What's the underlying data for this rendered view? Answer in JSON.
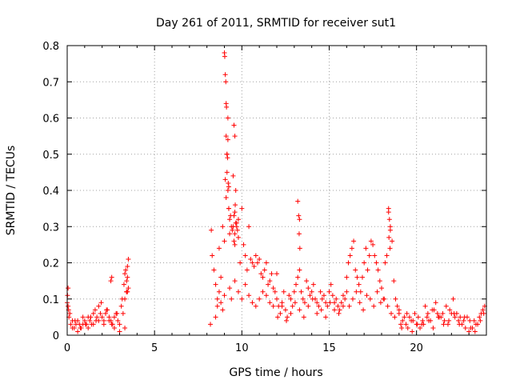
{
  "chart_data": {
    "type": "scatter",
    "title": "Day 261 of 2011, SRMTID for receiver sut1",
    "xlabel": "GPS time / hours",
    "ylabel": "SRMTID / TECUs",
    "xlim": [
      0,
      24
    ],
    "ylim": [
      0,
      0.8
    ],
    "xticks": [
      0,
      5,
      10,
      15,
      20
    ],
    "yticks": [
      0,
      0.1,
      0.2,
      0.3,
      0.4,
      0.5,
      0.6,
      0.7,
      0.8
    ],
    "xtick_labels": [
      "0",
      "5",
      "10",
      "15",
      "20"
    ],
    "ytick_labels": [
      "0",
      "0.1",
      "0.2",
      "0.3",
      "0.4",
      "0.5",
      "0.6",
      "0.7",
      "0.8"
    ],
    "grid": true,
    "marker": "+",
    "color": "#ff0000",
    "series": [
      {
        "name": "sut1",
        "x": [
          0.0,
          0.1,
          0.2,
          0.3,
          0.4,
          0.5,
          0.6,
          0.7,
          0.8,
          0.9,
          1.0,
          1.1,
          1.2,
          1.3,
          1.4,
          1.5,
          1.6,
          1.7,
          1.8,
          1.9,
          2.0,
          2.1,
          2.2,
          2.3,
          2.4,
          2.5,
          2.6,
          2.7,
          2.8,
          2.9,
          3.0,
          3.1,
          3.2,
          3.3,
          3.4,
          3.5,
          0.05,
          0.3,
          0.6,
          0.9,
          1.2,
          1.5,
          1.8,
          2.1,
          2.4,
          2.7,
          3.0,
          3.3,
          0.15,
          0.45,
          0.75,
          1.05,
          1.35,
          1.65,
          1.95,
          2.25,
          2.55,
          2.85,
          3.15,
          3.45,
          0.02,
          0.05,
          0.08,
          2.5,
          2.55,
          3.25,
          3.3,
          3.35,
          3.4,
          3.45,
          3.5,
          3.45,
          3.4,
          8.2,
          8.25,
          8.3,
          8.4,
          8.5,
          8.6,
          8.7,
          8.8,
          8.9,
          9.0,
          9.05,
          9.1,
          9.15,
          9.2,
          9.25,
          9.3,
          9.35,
          9.4,
          9.45,
          9.5,
          9.55,
          9.6,
          9.65,
          9.7,
          9.8,
          9.9,
          10.0,
          10.1,
          10.2,
          10.3,
          10.4,
          10.5,
          10.6,
          10.7,
          10.8,
          10.9,
          11.0,
          11.1,
          11.2,
          11.3,
          11.4,
          11.5,
          11.6,
          11.7,
          11.8,
          11.9,
          12.0,
          9.0,
          9.02,
          9.05,
          9.08,
          9.1,
          9.12,
          9.15,
          9.18,
          9.2,
          9.22,
          9.25,
          9.1,
          9.15,
          9.2,
          9.25,
          9.3,
          9.5,
          9.55,
          9.6,
          9.62,
          9.65,
          9.55,
          9.6,
          9.6,
          9.7,
          9.75,
          9.8,
          8.5,
          8.6,
          8.7,
          8.8,
          8.9,
          9.0,
          9.3,
          9.4,
          9.6,
          9.8,
          10.0,
          10.2,
          10.4,
          10.6,
          10.8,
          11.0,
          11.2,
          11.4,
          11.6,
          11.8,
          12.0,
          12.1,
          12.2,
          12.3,
          12.4,
          12.5,
          12.6,
          12.7,
          12.8,
          12.9,
          13.0,
          13.1,
          13.2,
          13.3,
          13.4,
          13.5,
          13.6,
          13.7,
          13.8,
          13.9,
          14.0,
          14.1,
          14.2,
          14.3,
          14.4,
          14.5,
          14.6,
          14.7,
          14.8,
          14.9,
          15.0,
          15.1,
          15.2,
          15.3,
          15.4,
          15.5,
          15.6,
          15.7,
          15.8,
          15.9,
          16.0,
          12.05,
          12.3,
          12.55,
          12.8,
          13.05,
          13.3,
          13.55,
          13.8,
          14.05,
          14.3,
          14.55,
          14.8,
          15.05,
          15.3,
          15.55,
          15.8,
          13.2,
          13.25,
          13.3,
          13.28,
          13.32,
          16.0,
          16.1,
          16.2,
          16.3,
          16.4,
          16.5,
          16.6,
          16.7,
          16.8,
          16.9,
          17.0,
          17.1,
          17.2,
          17.3,
          17.4,
          17.5,
          17.6,
          17.7,
          17.8,
          17.9,
          18.0,
          18.1,
          18.2,
          18.3,
          18.4,
          18.5,
          18.6,
          18.7,
          18.8,
          18.9,
          19.0,
          16.15,
          16.35,
          16.55,
          16.75,
          16.95,
          17.15,
          17.35,
          17.55,
          17.75,
          17.95,
          18.15,
          18.35,
          18.55,
          18.75,
          18.4,
          18.45,
          18.5,
          18.42,
          18.48,
          19.0,
          19.2,
          19.4,
          19.6,
          19.8,
          20.0,
          20.2,
          20.4,
          20.6,
          20.8,
          21.0,
          21.2,
          21.4,
          21.6,
          21.8,
          22.0,
          22.2,
          22.4,
          22.6,
          22.8,
          23.0,
          23.2,
          23.4,
          23.6,
          23.8,
          23.9,
          19.1,
          19.3,
          19.5,
          19.7,
          19.9,
          20.1,
          20.3,
          20.5,
          20.7,
          20.9,
          21.1,
          21.3,
          21.5,
          21.7,
          21.9,
          22.1,
          22.3,
          22.5,
          22.7,
          22.9,
          23.1,
          23.3,
          23.5,
          23.7,
          19.15,
          19.45,
          19.75,
          20.05,
          20.35,
          20.65,
          20.95,
          21.25,
          21.55,
          21.85,
          22.15,
          22.45,
          22.75,
          23.05,
          23.35,
          23.65,
          23.85
        ],
        "y": [
          0.09,
          0.05,
          0.03,
          0.04,
          0.02,
          0.03,
          0.04,
          0.03,
          0.02,
          0.03,
          0.04,
          0.03,
          0.05,
          0.04,
          0.03,
          0.06,
          0.07,
          0.05,
          0.04,
          0.06,
          0.05,
          0.04,
          0.06,
          0.07,
          0.05,
          0.04,
          0.03,
          0.05,
          0.06,
          0.04,
          0.03,
          0.08,
          0.06,
          0.1,
          0.12,
          0.13,
          0.13,
          0.02,
          0.01,
          0.05,
          0.02,
          0.03,
          0.08,
          0.03,
          0.04,
          0.02,
          0.01,
          0.02,
          0.06,
          0.04,
          0.02,
          0.03,
          0.05,
          0.04,
          0.09,
          0.07,
          0.03,
          0.06,
          0.1,
          0.12,
          0.11,
          0.08,
          0.07,
          0.15,
          0.16,
          0.14,
          0.17,
          0.18,
          0.15,
          0.19,
          0.21,
          0.16,
          0.12,
          0.03,
          0.29,
          0.22,
          0.18,
          0.14,
          0.1,
          0.24,
          0.16,
          0.3,
          0.26,
          0.43,
          0.55,
          0.5,
          0.6,
          0.35,
          0.28,
          0.33,
          0.3,
          0.29,
          0.44,
          0.58,
          0.55,
          0.4,
          0.3,
          0.32,
          0.2,
          0.35,
          0.25,
          0.22,
          0.18,
          0.3,
          0.21,
          0.2,
          0.19,
          0.22,
          0.2,
          0.21,
          0.17,
          0.16,
          0.18,
          0.2,
          0.14,
          0.15,
          0.17,
          0.13,
          0.12,
          0.17,
          0.78,
          0.77,
          0.72,
          0.7,
          0.64,
          0.63,
          0.5,
          0.49,
          0.54,
          0.42,
          0.41,
          0.38,
          0.45,
          0.4,
          0.35,
          0.32,
          0.3,
          0.33,
          0.28,
          0.36,
          0.31,
          0.26,
          0.25,
          0.34,
          0.31,
          0.29,
          0.27,
          0.05,
          0.08,
          0.12,
          0.09,
          0.07,
          0.11,
          0.13,
          0.1,
          0.15,
          0.12,
          0.1,
          0.14,
          0.11,
          0.09,
          0.08,
          0.1,
          0.12,
          0.11,
          0.09,
          0.08,
          0.1,
          0.08,
          0.06,
          0.09,
          0.12,
          0.07,
          0.05,
          0.11,
          0.1,
          0.08,
          0.12,
          0.14,
          0.16,
          0.18,
          0.12,
          0.1,
          0.09,
          0.15,
          0.13,
          0.11,
          0.12,
          0.14,
          0.1,
          0.09,
          0.08,
          0.12,
          0.1,
          0.11,
          0.09,
          0.08,
          0.12,
          0.14,
          0.11,
          0.09,
          0.1,
          0.08,
          0.07,
          0.09,
          0.11,
          0.1,
          0.12,
          0.05,
          0.08,
          0.04,
          0.06,
          0.09,
          0.07,
          0.05,
          0.08,
          0.1,
          0.06,
          0.07,
          0.05,
          0.09,
          0.07,
          0.06,
          0.08,
          0.37,
          0.33,
          0.32,
          0.28,
          0.24,
          0.16,
          0.2,
          0.22,
          0.24,
          0.26,
          0.18,
          0.16,
          0.14,
          0.12,
          0.16,
          0.2,
          0.24,
          0.18,
          0.22,
          0.26,
          0.25,
          0.22,
          0.2,
          0.18,
          0.15,
          0.13,
          0.1,
          0.2,
          0.22,
          0.34,
          0.3,
          0.26,
          0.15,
          0.1,
          0.08,
          0.07,
          0.08,
          0.1,
          0.12,
          0.09,
          0.07,
          0.11,
          0.1,
          0.08,
          0.12,
          0.09,
          0.1,
          0.08,
          0.06,
          0.05,
          0.35,
          0.32,
          0.29,
          0.27,
          0.24,
          0.06,
          0.04,
          0.03,
          0.05,
          0.04,
          0.03,
          0.02,
          0.03,
          0.05,
          0.04,
          0.07,
          0.06,
          0.05,
          0.04,
          0.03,
          0.06,
          0.05,
          0.04,
          0.03,
          0.02,
          0.01,
          0.02,
          0.03,
          0.05,
          0.07,
          0.08,
          0.03,
          0.05,
          0.02,
          0.04,
          0.06,
          0.05,
          0.03,
          0.08,
          0.04,
          0.07,
          0.09,
          0.05,
          0.06,
          0.08,
          0.07,
          0.1,
          0.06,
          0.05,
          0.04,
          0.05,
          0.02,
          0.04,
          0.03,
          0.06,
          0.02,
          0.06,
          0.01,
          0.03,
          0.04,
          0.06,
          0.02,
          0.05,
          0.03,
          0.04,
          0.06,
          0.03,
          0.05,
          0.04,
          0.01,
          0.04,
          0.06
        ]
      }
    ]
  }
}
